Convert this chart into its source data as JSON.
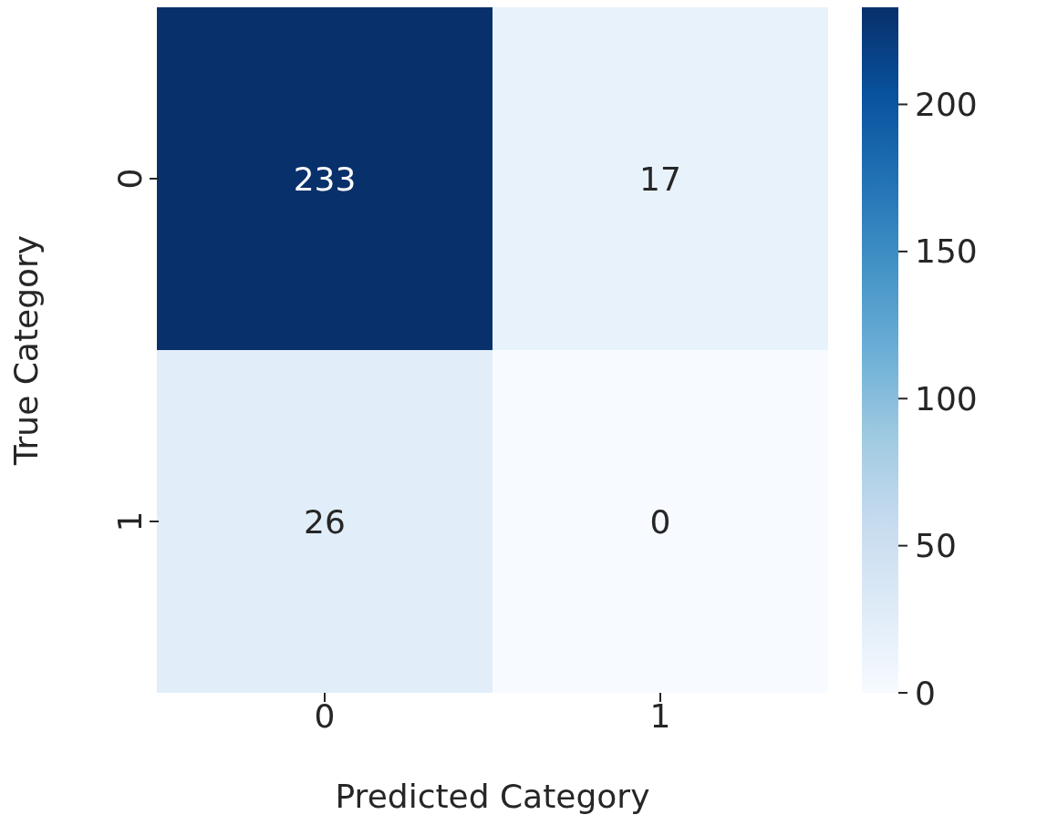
{
  "chart_data": {
    "type": "heatmap",
    "xlabel": "Predicted Category",
    "ylabel": "True Category",
    "categories": [
      "0",
      "1"
    ],
    "y_categories": [
      "0",
      "1"
    ],
    "cells": [
      [
        233,
        17
      ],
      [
        26,
        0
      ]
    ],
    "data_labels": true,
    "clim": [
      0,
      233
    ],
    "cticks": [
      0,
      50,
      100,
      150,
      200
    ]
  }
}
